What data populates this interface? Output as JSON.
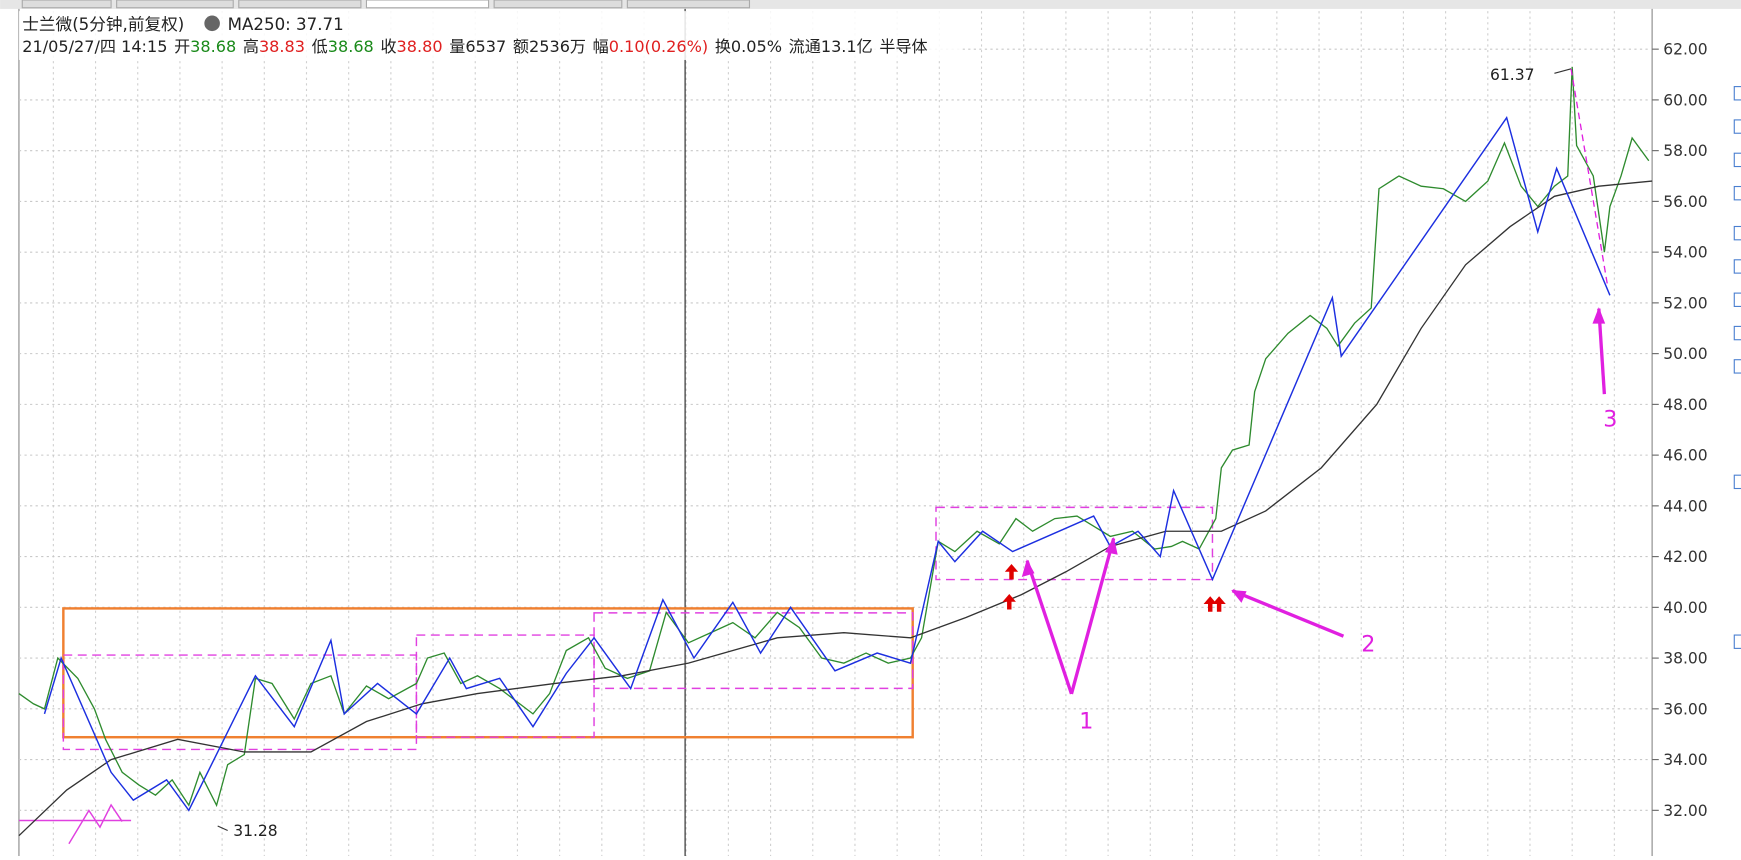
{
  "chart_data": {
    "type": "line",
    "title": "士兰微(5分钟,前复权)",
    "ma_label": "MA250: 37.71",
    "info": [
      {
        "value": "21/05/27/四 14:15",
        "color": "#222"
      },
      {
        "label": "开",
        "value": "38.68",
        "color": "#1a8a1a"
      },
      {
        "label": "高",
        "value": "38.83",
        "color": "#e02020"
      },
      {
        "label": "低",
        "value": "38.68",
        "color": "#1a8a1a"
      },
      {
        "label": "收",
        "value": "38.80",
        "color": "#e02020"
      },
      {
        "label": "量",
        "value": "6537",
        "color": "#222"
      },
      {
        "label": "额",
        "value": "2536万",
        "color": "#222"
      },
      {
        "label": "幅",
        "value": "0.10(0.26%)",
        "color": "#e02020"
      },
      {
        "label": "换",
        "value": "0.05%",
        "color": "#222"
      },
      {
        "label": "流通",
        "value": "13.1亿",
        "color": "#222"
      },
      {
        "value": "半导体",
        "color": "#222"
      }
    ],
    "xlim": [
      17,
      1488
    ],
    "ylim": [
      30.2,
      63.5
    ],
    "grid": true,
    "yticks": [
      {
        "value": 32,
        "label": "32.00"
      },
      {
        "value": 34,
        "label": "34.00"
      },
      {
        "value": 36,
        "label": "36.00"
      },
      {
        "value": 38,
        "label": "38.00"
      },
      {
        "value": 40,
        "label": "40.00"
      },
      {
        "value": 42,
        "label": "42.00"
      },
      {
        "value": 44,
        "label": "44.00"
      },
      {
        "value": 46,
        "label": "46.00"
      },
      {
        "value": 48,
        "label": "48.00"
      },
      {
        "value": 50,
        "label": "50.00"
      },
      {
        "value": 52,
        "label": "52.00"
      },
      {
        "value": 54,
        "label": "54.00"
      },
      {
        "value": 56,
        "label": "56.00"
      },
      {
        "value": 58,
        "label": "58.00"
      },
      {
        "value": 60,
        "label": "60.00"
      },
      {
        "value": 62,
        "label": "62.00"
      }
    ],
    "series": [
      {
        "color": "#2e8b2e",
        "x": [
          17,
          30,
          40,
          52,
          70,
          85,
          95,
          110,
          125,
          140,
          155,
          170,
          180,
          195,
          205,
          220,
          230,
          245,
          265,
          280,
          298,
          310,
          330,
          350,
          375,
          385,
          400,
          415,
          430,
          450,
          465,
          480,
          495,
          510,
          530,
          545,
          565,
          585,
          600,
          620,
          640,
          660,
          680,
          700,
          720,
          740,
          760,
          780,
          800,
          820,
          830,
          845,
          860,
          880,
          900,
          915,
          930,
          950,
          970,
          985,
          1000,
          1020,
          1040,
          1055,
          1065,
          1080,
          1095,
          1100,
          1110,
          1125,
          1130,
          1140,
          1160,
          1180,
          1195,
          1205,
          1220,
          1235,
          1242,
          1260,
          1280,
          1300,
          1320,
          1340,
          1355,
          1370,
          1385,
          1400,
          1412,
          1416,
          1420,
          1435,
          1445,
          1450,
          1460,
          1470,
          1485
        ],
        "values": [
          36.6,
          36.2,
          36.0,
          38.0,
          37.2,
          36.0,
          34.8,
          33.5,
          33.0,
          32.6,
          33.2,
          32.2,
          33.5,
          32.2,
          33.8,
          34.2,
          37.2,
          37.0,
          35.6,
          37.0,
          37.3,
          35.8,
          36.9,
          36.4,
          37.0,
          38.0,
          38.2,
          37.0,
          37.3,
          36.8,
          36.3,
          35.8,
          36.6,
          38.3,
          38.8,
          37.6,
          37.2,
          37.5,
          39.8,
          38.6,
          39.0,
          39.4,
          38.8,
          39.8,
          39.2,
          38.0,
          37.8,
          38.2,
          37.8,
          38.0,
          38.8,
          42.6,
          42.2,
          43.0,
          42.5,
          43.5,
          43.0,
          43.5,
          43.6,
          43.2,
          42.8,
          43.0,
          42.3,
          42.4,
          42.6,
          42.3,
          43.5,
          45.5,
          46.2,
          46.4,
          48.5,
          49.8,
          50.8,
          51.5,
          51.0,
          50.3,
          51.2,
          51.8,
          56.5,
          57.0,
          56.6,
          56.5,
          56.0,
          56.8,
          58.3,
          56.6,
          55.8,
          56.6,
          57.0,
          61.3,
          58.2,
          57.0,
          54.0,
          55.8,
          57.0,
          58.5,
          57.6
        ]
      },
      {
        "color": "#333333",
        "x": [
          17,
          60,
          100,
          160,
          220,
          280,
          330,
          380,
          430,
          500,
          560,
          620,
          700,
          760,
          820,
          870,
          920,
          960,
          1000,
          1050,
          1100,
          1140,
          1190,
          1240,
          1280,
          1320,
          1360,
          1400,
          1440,
          1488
        ],
        "values": [
          31.0,
          32.8,
          34.0,
          34.8,
          34.3,
          34.3,
          35.5,
          36.2,
          36.6,
          37.0,
          37.3,
          37.8,
          38.8,
          39.0,
          38.8,
          39.6,
          40.5,
          41.4,
          42.4,
          43.0,
          43.0,
          43.8,
          45.5,
          48.0,
          51.0,
          53.5,
          55.0,
          56.2,
          56.6,
          56.8
        ]
      },
      {
        "color": "#1c2fe0",
        "x": [
          40,
          55,
          100,
          120,
          150,
          170,
          230,
          265,
          298,
          310,
          340,
          375,
          405,
          420,
          450,
          480,
          510,
          535,
          568,
          597,
          625,
          660,
          685,
          712,
          752,
          790,
          820,
          845,
          860,
          885,
          912,
          985,
          1000,
          1025,
          1045,
          1057,
          1092,
          1200,
          1208,
          1357,
          1385,
          1402,
          1450
        ],
        "values": [
          35.8,
          38.0,
          33.5,
          32.4,
          33.2,
          32.0,
          37.3,
          35.3,
          38.7,
          35.8,
          37.0,
          35.8,
          38.0,
          36.8,
          37.2,
          35.3,
          37.4,
          38.8,
          36.8,
          40.3,
          38.0,
          40.2,
          38.2,
          40.0,
          37.5,
          38.2,
          37.8,
          42.6,
          41.8,
          43.0,
          42.2,
          43.6,
          42.4,
          43.0,
          42.0,
          44.6,
          41.1,
          52.2,
          49.9,
          59.3,
          54.8,
          57.3,
          52.3
        ]
      }
    ],
    "annotations": [
      "61.37",
      "31.28",
      "1",
      "2",
      "3"
    ]
  }
}
